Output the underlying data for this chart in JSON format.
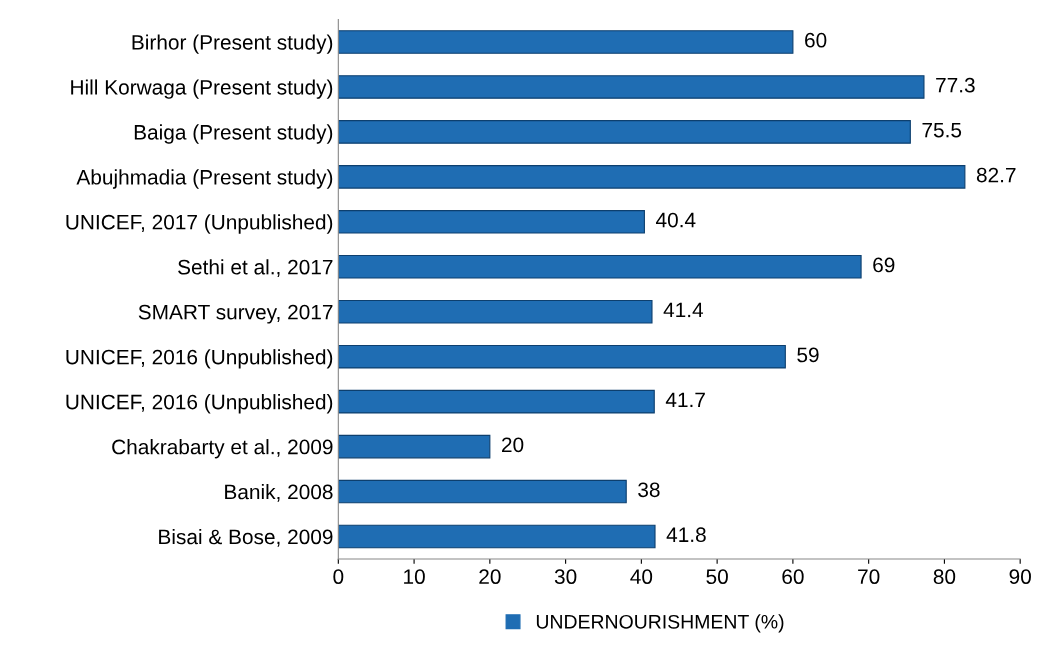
{
  "chart_data": {
    "type": "bar",
    "orientation": "horizontal",
    "categories": [
      "Birhor (Present study)",
      "Hill Korwaga (Present study)",
      "Baiga (Present study)",
      "Abujhmadia (Present study)",
      "UNICEF, 2017 (Unpublished)",
      "Sethi et al., 2017",
      "SMART survey, 2017",
      "UNICEF, 2016 (Unpublished)",
      "UNICEF, 2016 (Unpublished)",
      "Chakrabarty et al., 2009",
      "Banik, 2008",
      "Bisai & Bose, 2009"
    ],
    "series": [
      {
        "name": "UNDERNOURISHMENT (%)",
        "color": "#1f6db3",
        "values": [
          60,
          77.3,
          75.5,
          82.7,
          40.4,
          69,
          41.4,
          59,
          41.7,
          20,
          38,
          41.8
        ]
      }
    ],
    "xlim": [
      0,
      90
    ],
    "xticks": [
      0,
      10,
      20,
      30,
      40,
      50,
      60,
      70,
      80,
      90
    ],
    "data_labels": true,
    "grid": false,
    "legend": "bottom"
  }
}
